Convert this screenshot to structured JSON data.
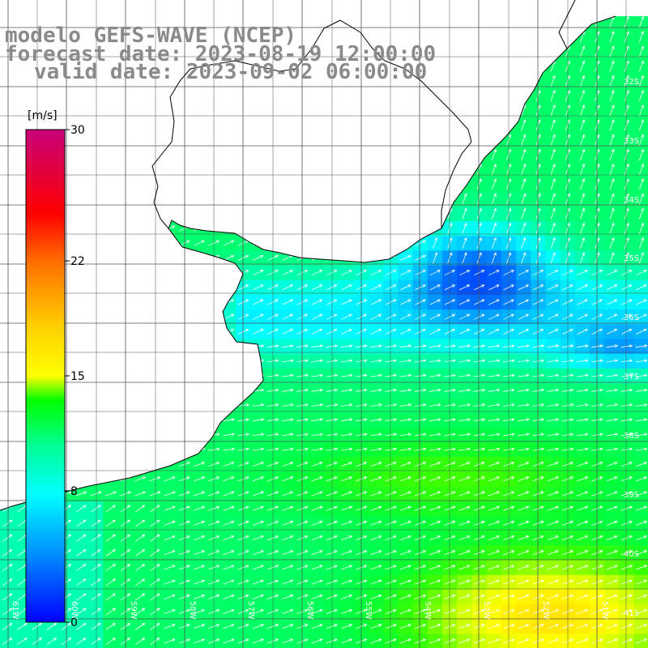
{
  "title": {
    "line1": "modelo GEFS-WAVE (NCEP)",
    "line2": "forecast date: 2023-08-19 12:00:00",
    "line3": "valid date: 2023-09-02 06:00:00"
  },
  "colorbar": {
    "unit": "[m/s]",
    "min": 0,
    "max": 30,
    "tick_labels": [
      "30",
      "22",
      "15",
      "8",
      "0"
    ],
    "tick_values": [
      30,
      22,
      15,
      8,
      0
    ],
    "colors": [
      "#0000ff",
      "#00c8ff",
      "#00ffff",
      "#00ff88",
      "#00ff00",
      "#a0ff00",
      "#ffff00",
      "#ffb000",
      "#ff5000",
      "#ff0000",
      "#ff0060",
      "#c8007a"
    ]
  },
  "axes": {
    "lat_labels": [
      "32S",
      "33S",
      "34S",
      "35S",
      "36S",
      "37S",
      "38S",
      "39S",
      "40S",
      "41S"
    ],
    "lon_labels": [
      "61W",
      "60W",
      "59W",
      "58W",
      "57W",
      "56W",
      "55W",
      "54W",
      "53W",
      "52W",
      "51W"
    ]
  },
  "chart_data": {
    "type": "heatmap",
    "variable": "wind speed",
    "unit": "m/s",
    "lat_range": [
      "31S",
      "41.5S"
    ],
    "lon_range": [
      "61.5W",
      "50.5W"
    ],
    "scale": [
      0,
      30
    ],
    "field_summary": [
      {
        "region": "Rio de la Plata estuary / outer shelf near 35S-36S 54W-53W",
        "speed_ms": 4
      },
      {
        "region": "coastal strip 35.5S-37S",
        "speed_ms": 8
      },
      {
        "region": "offshore Uruguay / S Brazil 32S-34S",
        "speed_ms": 11
      },
      {
        "region": "south Buenos Aires shelf 38S-40S",
        "speed_ms": 11
      },
      {
        "region": "southeast corner 40.5S-41.5S 53W-51W",
        "speed_ms": 16
      }
    ]
  }
}
